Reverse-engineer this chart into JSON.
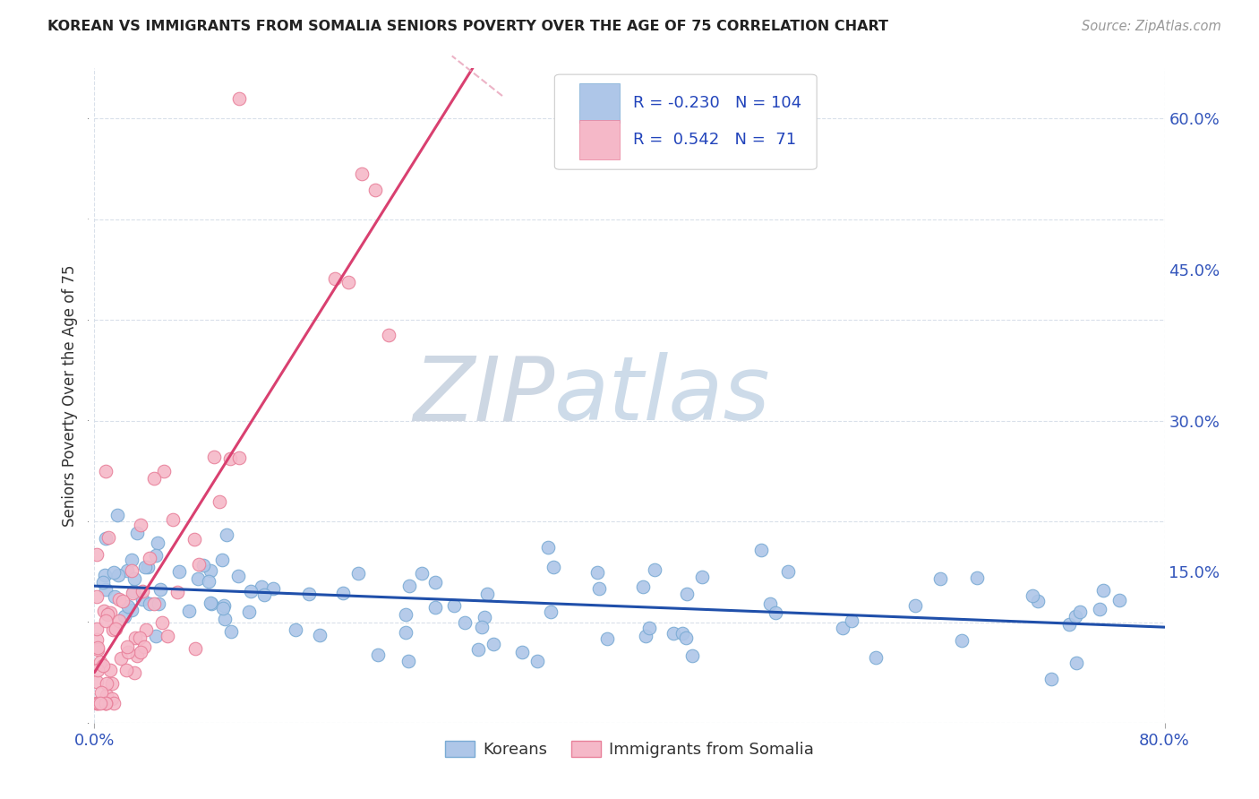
{
  "title": "KOREAN VS IMMIGRANTS FROM SOMALIA SENIORS POVERTY OVER THE AGE OF 75 CORRELATION CHART",
  "source": "Source: ZipAtlas.com",
  "ylabel": "Seniors Poverty Over the Age of 75",
  "xlim": [
    0.0,
    0.8
  ],
  "ylim": [
    0.0,
    0.65
  ],
  "korean_R": -0.23,
  "korean_N": 104,
  "somalia_R": 0.542,
  "somalia_N": 71,
  "korean_color": "#aec6e8",
  "somalia_color": "#f5b8c8",
  "korean_edge_color": "#7aabd4",
  "somalia_edge_color": "#e8809a",
  "korean_line_color": "#1f4faa",
  "somalia_line_color": "#d94070",
  "somalia_dash_color": "#e8a0b8",
  "watermark_zip_color": "#c8d5e8",
  "watermark_atlas_color": "#b8c8e0",
  "title_color": "#222222",
  "source_color": "#999999",
  "tick_color": "#3355bb",
  "ylabel_color": "#333333",
  "legend_text_color": "#2244bb",
  "grid_color": "#d5dde8",
  "background_color": "#ffffff"
}
